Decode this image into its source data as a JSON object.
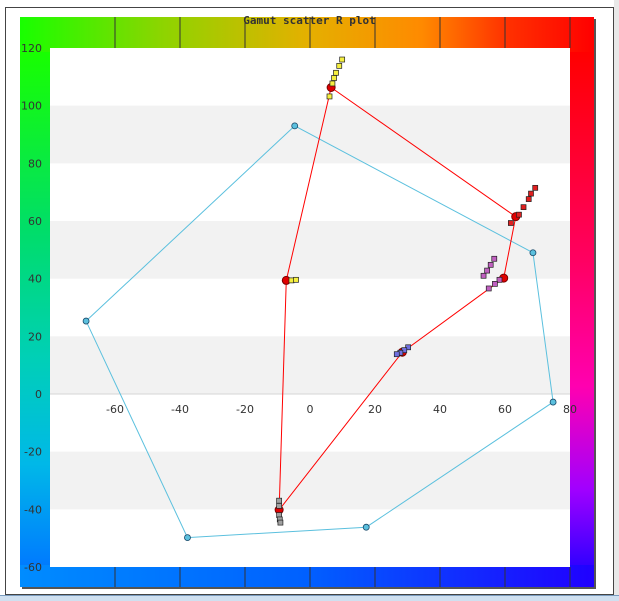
{
  "chart_data": {
    "type": "scatter",
    "title": "Gamut scatter R plot",
    "xlim": [
      -80,
      80
    ],
    "ylim": [
      -60,
      120
    ],
    "x_ticks": [
      -60,
      -40,
      -20,
      0,
      20,
      40,
      60,
      80
    ],
    "y_ticks": [
      120,
      100,
      80,
      60,
      40,
      20,
      0,
      -20,
      -40,
      -60
    ],
    "grid": "horizontal alternating bands",
    "background": "hue color wheel gradient",
    "colors": {
      "reference_polygon": "#5bc0de",
      "target_polygon": "#ff0000",
      "target_marker": "#e00000",
      "band": "#f2f2f2"
    },
    "reference_polygon": [
      {
        "x": -4.7,
        "y": 93.0
      },
      {
        "x": 68.6,
        "y": 49.0
      },
      {
        "x": 74.8,
        "y": -2.8
      },
      {
        "x": 17.3,
        "y": -46.2
      },
      {
        "x": -37.7,
        "y": -49.8
      },
      {
        "x": -68.9,
        "y": 25.3
      }
    ],
    "target_polygon": [
      {
        "x": 6.5,
        "y": 106.3
      },
      {
        "x": 63.3,
        "y": 61.5
      },
      {
        "x": 59.6,
        "y": 40.2
      },
      {
        "x": 28.4,
        "y": 14.5
      },
      {
        "x": -9.5,
        "y": -40.2
      },
      {
        "x": -7.3,
        "y": 39.4
      }
    ],
    "measurement_markers": [
      {
        "color": "#f5ef40",
        "points": [
          [
            9.9,
            116.0
          ],
          [
            9.0,
            113.8
          ],
          [
            8.0,
            111.4
          ],
          [
            7.4,
            109.6
          ],
          [
            6.9,
            107.7
          ],
          [
            6.0,
            103.2
          ],
          [
            -5.7,
            39.4
          ],
          [
            -4.3,
            39.6
          ]
        ]
      },
      {
        "color": "#e02020",
        "points": [
          [
            69.3,
            71.5
          ],
          [
            68.0,
            69.5
          ],
          [
            67.3,
            67.6
          ],
          [
            65.7,
            64.8
          ],
          [
            64.3,
            62.2
          ],
          [
            61.8,
            59.3
          ]
        ]
      },
      {
        "color": "#c060c0",
        "points": [
          [
            56.7,
            46.9
          ],
          [
            55.6,
            44.8
          ],
          [
            54.5,
            42.8
          ],
          [
            53.4,
            41.0
          ],
          [
            58.3,
            39.6
          ],
          [
            56.9,
            38.2
          ],
          [
            55.0,
            36.6
          ]
        ]
      },
      {
        "color": "#7070e0",
        "points": [
          [
            30.2,
            16.2
          ],
          [
            29.0,
            15.2
          ],
          [
            27.8,
            14.3
          ],
          [
            26.7,
            13.8
          ]
        ]
      },
      {
        "color": "#a0a0a0",
        "points": [
          [
            -9.5,
            -37.0
          ],
          [
            -9.5,
            -38.8
          ],
          [
            -9.5,
            -42.0
          ],
          [
            -9.3,
            -43.5
          ],
          [
            -9.1,
            -44.6
          ]
        ]
      }
    ]
  }
}
